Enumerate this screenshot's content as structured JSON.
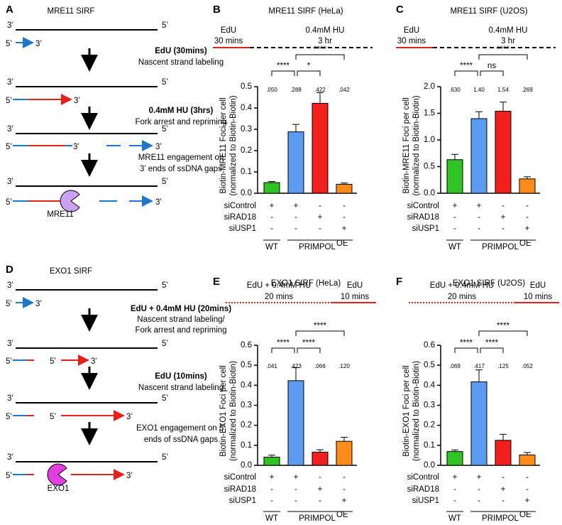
{
  "diagrams": [
    {
      "panel": "A",
      "title": "MRE11 SIRF",
      "strand_ends": [
        "3’",
        "5’"
      ],
      "steps": [
        [
          "EdU (30mins)",
          "Nascent strand labeling"
        ],
        [
          "0.4mM HU (3hrs)",
          "Fork arrest and repriming"
        ],
        [
          "MRE11 engagement on",
          "3’ ends of ssDNA gaps"
        ]
      ],
      "protein": "MRE11"
    },
    {
      "panel": "D",
      "title": "EXO1 SIRF",
      "strand_ends": [
        "3’",
        "5’"
      ],
      "steps": [
        [
          "EdU + 0.4mM HU (20mins)",
          "Nascent strand labeling/",
          "Fork arrest and repriming"
        ],
        [
          "EdU (10mins)",
          "Nascent strand labeling"
        ],
        [
          "EXO1 engagement on 5’",
          "ends of ssDNA gaps"
        ]
      ],
      "protein": "EXO1"
    }
  ],
  "chart_data": [
    {
      "type": "bar",
      "panel": "B",
      "title": "MRE11 SIRF (HeLa)",
      "timeline": [
        {
          "label": "EdU",
          "duration": "30 mins"
        },
        {
          "label": "0.4mM HU",
          "duration": "3 hr"
        }
      ],
      "ylabel": [
        "Biotin-MRE11 Foci per cell",
        "(normalized to Biotin-Biotin)"
      ],
      "values": [
        0.05,
        0.288,
        0.422,
        0.042
      ],
      "errors": [
        0.005,
        0.035,
        0.05,
        0.006
      ],
      "value_labels": [
        ".050",
        ".288",
        ".422",
        ".042"
      ],
      "colors": [
        "#2fc424",
        "#5b9cf2",
        "#f2201c",
        "#ff8c1a"
      ],
      "ylim": [
        0,
        0.5
      ],
      "yticks": [
        {
          "value": 0,
          "label": "0.0"
        },
        0.1,
        0.2,
        0.3,
        0.4,
        0.5
      ],
      "significance": [
        "****",
        "*",
        "****"
      ],
      "conditions": [
        {
          "name": "siControl",
          "marks": [
            "+",
            "+",
            "-",
            "-"
          ]
        },
        {
          "name": "siRAD18",
          "marks": [
            "-",
            "-",
            "+",
            "-"
          ]
        },
        {
          "name": "siUSP1",
          "marks": [
            "-",
            "-",
            "-",
            "+"
          ]
        }
      ],
      "groups": [
        "WT",
        "PRIMPOL"
      ],
      "group_superscript": "OE"
    },
    {
      "type": "bar",
      "panel": "C",
      "title": "MRE11 SIRF (U2OS)",
      "timeline": [
        {
          "label": "EdU",
          "duration": "30 mins"
        },
        {
          "label": "0.4mM HU",
          "duration": "3 hr"
        }
      ],
      "ylabel": [
        "Biotin-MRE11 Foci per cell",
        "(normalized to Biotin-Biotin)"
      ],
      "values": [
        0.63,
        1.4,
        1.54,
        0.269
      ],
      "errors": [
        0.1,
        0.13,
        0.17,
        0.04
      ],
      "value_labels": [
        ".630",
        "1.40",
        "1.54",
        ".269"
      ],
      "colors": [
        "#2fc424",
        "#5b9cf2",
        "#f2201c",
        "#ff8c1a"
      ],
      "ylim": [
        0,
        2
      ],
      "yticks": [
        {
          "value": 0,
          "label": "0.0"
        },
        0.5,
        {
          "value": 1,
          "label": "1.0"
        },
        1.5,
        {
          "value": 2,
          "label": "2.0"
        }
      ],
      "significance": [
        "****",
        "ns",
        "****"
      ],
      "conditions": [
        {
          "name": "siControl",
          "marks": [
            "+",
            "+",
            "-",
            "-"
          ]
        },
        {
          "name": "siRAD18",
          "marks": [
            "-",
            "-",
            "+",
            "-"
          ]
        },
        {
          "name": "siUSP1",
          "marks": [
            "-",
            "-",
            "-",
            "+"
          ]
        }
      ],
      "groups": [
        "WT",
        "PRIMPOL"
      ],
      "group_superscript": "OE"
    },
    {
      "type": "bar",
      "panel": "E",
      "title": "EXO1 SIRF (HeLa)",
      "timeline": [
        {
          "label": "EdU + 0.4mM HU",
          "duration": "20 mins"
        },
        {
          "label": "EdU",
          "duration": "10 mins"
        }
      ],
      "ylabel": [
        "Biotin-EXO1 Foci per cell",
        "(normalized to Biotin-Biotin)"
      ],
      "values": [
        0.041,
        0.423,
        0.066,
        0.12
      ],
      "errors": [
        0.01,
        0.065,
        0.012,
        0.02
      ],
      "value_labels": [
        ".041",
        ".423",
        ".066",
        ".120"
      ],
      "colors": [
        "#2fc424",
        "#5b9cf2",
        "#f2201c",
        "#ff8c1a"
      ],
      "ylim": [
        0,
        0.6
      ],
      "yticks": [
        {
          "value": 0,
          "label": "0.0"
        },
        0.1,
        0.2,
        0.3,
        0.4,
        0.5,
        0.6
      ],
      "significance": [
        "****",
        "****",
        "****"
      ],
      "conditions": [
        {
          "name": "siControl",
          "marks": [
            "+",
            "+",
            "-",
            "-"
          ]
        },
        {
          "name": "siRAD18",
          "marks": [
            "-",
            "-",
            "+",
            "-"
          ]
        },
        {
          "name": "siUSP1",
          "marks": [
            "-",
            "-",
            "-",
            "+"
          ]
        }
      ],
      "groups": [
        "WT",
        "PRIMPOL"
      ],
      "group_superscript": "OE"
    },
    {
      "type": "bar",
      "panel": "F",
      "title": "EXO1 SIRF (U2OS)",
      "timeline": [
        {
          "label": "EdU + 0.4mM HU",
          "duration": "20 mins"
        },
        {
          "label": "EdU",
          "duration": "10 mins"
        }
      ],
      "ylabel": [
        "Biotin-EXO1 Foci per cell",
        "(normalized to Biotin-Biotin)"
      ],
      "values": [
        0.069,
        0.417,
        0.125,
        0.052
      ],
      "errors": [
        0.008,
        0.06,
        0.03,
        0.012
      ],
      "value_labels": [
        ".069",
        ".417",
        ".125",
        ".052"
      ],
      "colors": [
        "#2fc424",
        "#5b9cf2",
        "#f2201c",
        "#ff8c1a"
      ],
      "ylim": [
        0,
        0.6
      ],
      "yticks": [
        {
          "value": 0,
          "label": "0.0"
        },
        0.1,
        0.2,
        0.3,
        0.4,
        0.5,
        0.6
      ],
      "significance": [
        "****",
        "****",
        "****"
      ],
      "conditions": [
        {
          "name": "siControl",
          "marks": [
            "+",
            "+",
            "-",
            "-"
          ]
        },
        {
          "name": "siRAD18",
          "marks": [
            "-",
            "-",
            "+",
            "-"
          ]
        },
        {
          "name": "siUSP1",
          "marks": [
            "-",
            "-",
            "-",
            "+"
          ]
        }
      ],
      "groups": [
        "WT",
        "PRIMPOL"
      ],
      "group_superscript": "OE"
    }
  ]
}
